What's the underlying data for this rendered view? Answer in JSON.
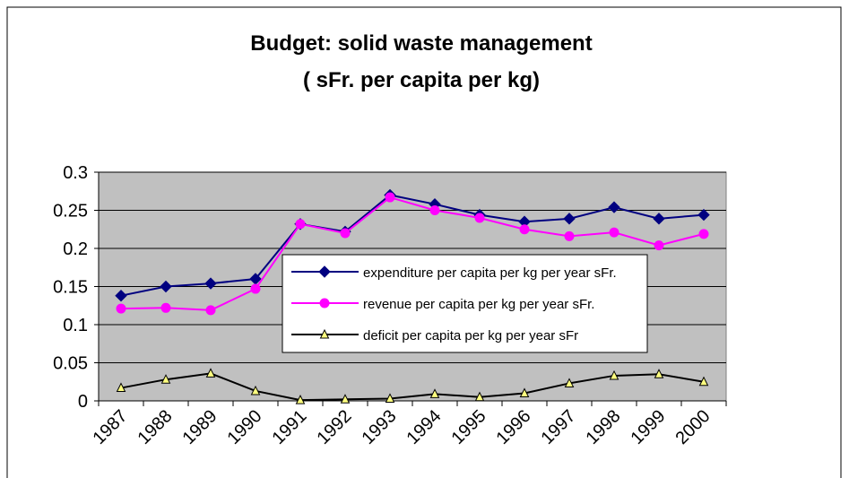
{
  "chart_data": {
    "type": "line",
    "title": "Budget: solid waste management",
    "subtitle": "( sFr. per capita per kg)",
    "categories": [
      "1987",
      "1988",
      "1989",
      "1990",
      "1991",
      "1992",
      "1993",
      "1994",
      "1995",
      "1996",
      "1997",
      "1998",
      "1999",
      "2000"
    ],
    "series": [
      {
        "name": "expenditure per capita per kg per year sFr.",
        "color": "#000080",
        "marker": "diamond",
        "values": [
          0.138,
          0.15,
          0.154,
          0.16,
          0.232,
          0.222,
          0.27,
          0.258,
          0.244,
          0.235,
          0.239,
          0.254,
          0.239,
          0.244
        ]
      },
      {
        "name": "revenue per capita per kg per year sFr.",
        "color": "#ff00ff",
        "marker": "circle",
        "values": [
          0.121,
          0.122,
          0.119,
          0.147,
          0.232,
          0.22,
          0.267,
          0.25,
          0.24,
          0.225,
          0.216,
          0.221,
          0.204,
          0.219
        ]
      },
      {
        "name": "deficit per capita per kg per year sFr",
        "color": "#000000",
        "marker": "triangle",
        "values": [
          0.017,
          0.028,
          0.036,
          0.013,
          0.001,
          0.002,
          0.003,
          0.009,
          0.005,
          0.01,
          0.023,
          0.033,
          0.035,
          0.025
        ]
      }
    ],
    "ylim": [
      0,
      0.3
    ],
    "yticks": [
      0,
      0.05,
      0.1,
      0.15,
      0.2,
      0.25,
      0.3
    ],
    "grid": true,
    "plot_background": "#c0c0c0"
  }
}
